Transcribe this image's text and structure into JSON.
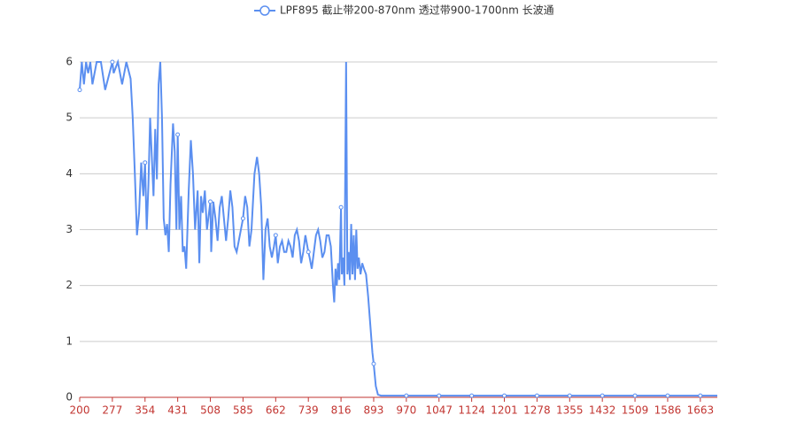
{
  "chart_data": {
    "type": "line",
    "series": [
      {
        "name": "LPF895 截止带200-870nm 透过带900-1700nm 长波通",
        "color": "#5b8ff0",
        "x": [
          200,
          205,
          210,
          215,
          220,
          225,
          230,
          240,
          250,
          260,
          277,
          280,
          290,
          300,
          310,
          320,
          325,
          330,
          335,
          340,
          345,
          350,
          354,
          358,
          362,
          366,
          370,
          374,
          378,
          382,
          386,
          390,
          394,
          398,
          402,
          406,
          410,
          414,
          420,
          424,
          428,
          431,
          435,
          439,
          443,
          447,
          451,
          457,
          462,
          467,
          472,
          478,
          482,
          486,
          490,
          495,
          500,
          508,
          510,
          515,
          520,
          525,
          530,
          535,
          540,
          545,
          550,
          555,
          560,
          565,
          570,
          575,
          580,
          585,
          590,
          595,
          600,
          605,
          612,
          618,
          623,
          628,
          633,
          638,
          643,
          648,
          653,
          658,
          662,
          667,
          672,
          677,
          682,
          687,
          692,
          697,
          702,
          707,
          712,
          717,
          722,
          727,
          732,
          739,
          742,
          747,
          752,
          757,
          762,
          767,
          772,
          777,
          782,
          787,
          792,
          797,
          800,
          803,
          806,
          809,
          812,
          816,
          818,
          821,
          824,
          828,
          831,
          834,
          837,
          840,
          843,
          846,
          849,
          852,
          855,
          858,
          862,
          866,
          870,
          875,
          880,
          885,
          890,
          893,
          898,
          903,
          910,
          970,
          1047,
          1124,
          1201,
          1278,
          1355,
          1432,
          1509,
          1586,
          1663,
          1703
        ],
        "values": [
          5.5,
          6,
          5.6,
          6,
          5.8,
          6,
          5.6,
          6,
          6,
          5.5,
          6,
          5.8,
          6,
          5.6,
          6,
          5.7,
          5.0,
          4.0,
          2.9,
          3.3,
          4.2,
          3.6,
          4.2,
          3.0,
          3.8,
          5.0,
          4.3,
          3.6,
          4.8,
          3.9,
          5.6,
          6,
          5.0,
          3.2,
          2.9,
          3.1,
          2.6,
          3.8,
          4.9,
          4.4,
          3.0,
          4.7,
          3.0,
          3.6,
          2.6,
          2.7,
          2.3,
          3.7,
          4.6,
          4.0,
          3.0,
          3.7,
          2.4,
          3.6,
          3.3,
          3.7,
          3.0,
          3.5,
          2.6,
          3.5,
          3.2,
          2.8,
          3.4,
          3.6,
          3.2,
          2.8,
          3.2,
          3.7,
          3.4,
          2.7,
          2.6,
          2.8,
          3.0,
          3.2,
          3.6,
          3.4,
          2.7,
          3.0,
          4.0,
          4.3,
          4.0,
          3.4,
          2.1,
          3.0,
          3.2,
          2.7,
          2.5,
          2.7,
          2.9,
          2.4,
          2.7,
          2.8,
          2.6,
          2.6,
          2.8,
          2.7,
          2.5,
          2.9,
          3.0,
          2.8,
          2.4,
          2.6,
          2.9,
          2.6,
          2.5,
          2.3,
          2.6,
          2.9,
          3.0,
          2.8,
          2.5,
          2.6,
          2.9,
          2.9,
          2.7,
          2.0,
          1.7,
          2.3,
          2.0,
          2.4,
          2.1,
          3.4,
          2.2,
          2.5,
          2.0,
          6.0,
          2.2,
          2.6,
          2.1,
          3.1,
          2.2,
          2.9,
          2.1,
          3.0,
          2.3,
          2.5,
          2.2,
          2.4,
          2.3,
          2.2,
          1.8,
          1.3,
          0.8,
          0.6,
          0.2,
          0.05,
          0.03,
          0.03,
          0.03,
          0.03,
          0.03,
          0.03,
          0.03,
          0.03,
          0.03,
          0.03,
          0.03,
          0.03
        ]
      }
    ],
    "xlim": [
      200,
      1703
    ],
    "xticks": [
      200,
      277,
      354,
      431,
      508,
      585,
      662,
      739,
      816,
      893,
      970,
      1047,
      1124,
      1201,
      1278,
      1355,
      1432,
      1509,
      1586,
      1663
    ],
    "ylim": [
      0,
      6
    ],
    "yticks": [
      0,
      1,
      2,
      3,
      4,
      5,
      6
    ],
    "grid": true
  }
}
